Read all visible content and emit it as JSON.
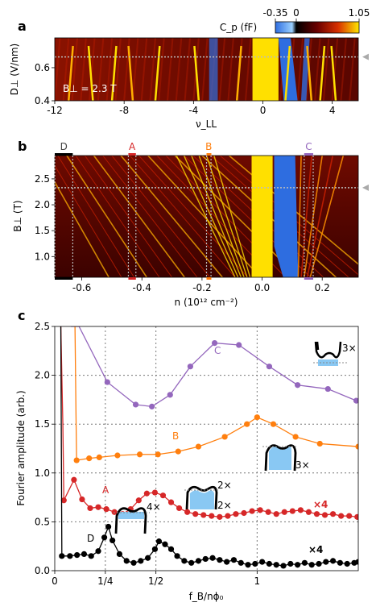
{
  "colors": {
    "purple": "#9467bd",
    "orange": "#ff7f0e",
    "red": "#d62728",
    "black": "#000000",
    "fill_blue": "#89c8f3",
    "map_dark": "#4a0000",
    "map_red": "#c82000",
    "map_yellow": "#ffe000",
    "map_blue": "#2e6de0"
  },
  "chart_data": [
    {
      "panel": "a",
      "type": "heatmap",
      "xlabel": "ν_LL",
      "ylabel": "D⊥ (V/nm)",
      "xlim": [
        -12,
        5.5
      ],
      "ylim": [
        0.4,
        0.78
      ],
      "xticks": [
        "-12",
        "-8",
        "-4",
        "0",
        "4"
      ],
      "xtick_values": [
        -12,
        -8,
        -4,
        0,
        4
      ],
      "yticks": [
        "0.4",
        "0.6"
      ],
      "ytick_values": [
        0.4,
        0.6
      ],
      "annotation": "B⊥ = 2.3 T",
      "dotted_line_y": 0.665,
      "colorbar": {
        "label": "C_p (fF)",
        "ticks": [
          "-0.35",
          "0",
          "1.05"
        ],
        "tick_values": [
          -0.35,
          0,
          1.05
        ],
        "range": [
          -0.35,
          1.05
        ]
      },
      "yellow_streaks_nu": [
        -11.2,
        -9.8,
        -8.7,
        -7.5,
        -6.2,
        -3.7,
        -1.5,
        0.0,
        1.3,
        2.8,
        3.3,
        4.2
      ]
    },
    {
      "panel": "b",
      "type": "heatmap",
      "xlabel": "n (10¹² cm⁻²)",
      "ylabel": "B⊥ (T)",
      "xlim": [
        -0.69,
        0.32
      ],
      "ylim": [
        0.6,
        2.95
      ],
      "xticks": [
        "-0.6",
        "-0.4",
        "-0.2",
        "0.0",
        "0.2"
      ],
      "xtick_values": [
        -0.6,
        -0.4,
        -0.2,
        0.0,
        0.2
      ],
      "yticks": [
        "1.0",
        "1.5",
        "2.0",
        "2.5"
      ],
      "ytick_values": [
        1.0,
        1.5,
        2.0,
        2.5
      ],
      "dotted_line_y": 2.33,
      "markers": [
        {
          "label": "D",
          "n": [
            -0.69,
            -0.63
          ],
          "color": "#000000"
        },
        {
          "label": "A",
          "n": [
            -0.445,
            -0.42
          ],
          "color": "#d62728"
        },
        {
          "label": "B",
          "n": [
            -0.185,
            -0.17
          ],
          "color": "#ff7f0e"
        },
        {
          "label": "C",
          "n": [
            0.14,
            0.17
          ],
          "color": "#9467bd"
        }
      ]
    },
    {
      "panel": "c",
      "type": "line",
      "xlabel": "f_B/nϕ₀",
      "ylabel": "Fourier amplitude (arb.)",
      "xlim": [
        0,
        1.5
      ],
      "ylim": [
        0,
        2.5
      ],
      "xticks": [
        "0",
        "1/4",
        "1/2",
        "1"
      ],
      "xtick_values": [
        0,
        0.25,
        0.5,
        1.0
      ],
      "yticks": [
        "0.0",
        "0.5",
        "1.0",
        "1.5",
        "2.0",
        "2.5"
      ],
      "ytick_values": [
        0,
        0.5,
        1.0,
        1.5,
        2.0,
        2.5
      ],
      "vgrid": [
        0.25,
        0.5,
        1.0
      ],
      "hgrid": [
        0.5,
        1.0,
        1.5,
        2.0
      ],
      "series": [
        {
          "name": "C",
          "color": "#9467bd",
          "spike": [
            [
              0.08,
              2.5
            ],
            [
              0.12,
              2.5
            ]
          ],
          "points": [
            [
              0.12,
              2.5
            ],
            [
              0.26,
              1.93
            ],
            [
              0.4,
              1.7
            ],
            [
              0.48,
              1.68
            ],
            [
              0.57,
              1.8
            ],
            [
              0.67,
              2.09
            ],
            [
              0.79,
              2.33
            ],
            [
              0.91,
              2.31
            ],
            [
              1.06,
              2.09
            ],
            [
              1.2,
              1.9
            ],
            [
              1.35,
              1.86
            ],
            [
              1.49,
              1.74
            ]
          ],
          "markers_from": 1
        },
        {
          "name": "B",
          "color": "#ff7f0e",
          "spike": [
            [
              0.1,
              2.5
            ],
            [
              0.105,
              1.6
            ]
          ],
          "points": [
            [
              0.108,
              1.13
            ],
            [
              0.17,
              1.15
            ],
            [
              0.22,
              1.16
            ],
            [
              0.31,
              1.18
            ],
            [
              0.42,
              1.19
            ],
            [
              0.51,
              1.19
            ],
            [
              0.61,
              1.22
            ],
            [
              0.71,
              1.27
            ],
            [
              0.84,
              1.37
            ],
            [
              0.95,
              1.5
            ],
            [
              1.0,
              1.57
            ],
            [
              1.08,
              1.5
            ],
            [
              1.19,
              1.37
            ],
            [
              1.31,
              1.3
            ],
            [
              1.5,
              1.27
            ]
          ]
        },
        {
          "name": "A",
          "color": "#d62728",
          "spike": [
            [
              0.03,
              2.5
            ],
            [
              0.04,
              1.5
            ]
          ],
          "points": [
            [
              0.045,
              0.72
            ],
            [
              0.095,
              0.93
            ],
            [
              0.135,
              0.73
            ],
            [
              0.175,
              0.64
            ],
            [
              0.215,
              0.65
            ],
            [
              0.255,
              0.63
            ],
            [
              0.295,
              0.6
            ],
            [
              0.335,
              0.58
            ],
            [
              0.375,
              0.63
            ],
            [
              0.415,
              0.72
            ],
            [
              0.455,
              0.79
            ],
            [
              0.495,
              0.8
            ],
            [
              0.535,
              0.77
            ],
            [
              0.575,
              0.7
            ],
            [
              0.615,
              0.64
            ],
            [
              0.655,
              0.6
            ],
            [
              0.695,
              0.58
            ],
            [
              0.735,
              0.57
            ],
            [
              0.775,
              0.56
            ],
            [
              0.815,
              0.55
            ],
            [
              0.855,
              0.56
            ],
            [
              0.895,
              0.58
            ],
            [
              0.935,
              0.59
            ],
            [
              0.975,
              0.61
            ],
            [
              1.015,
              0.62
            ],
            [
              1.055,
              0.6
            ],
            [
              1.095,
              0.58
            ],
            [
              1.135,
              0.6
            ],
            [
              1.175,
              0.61
            ],
            [
              1.215,
              0.62
            ],
            [
              1.255,
              0.6
            ],
            [
              1.295,
              0.58
            ],
            [
              1.335,
              0.57
            ],
            [
              1.375,
              0.58
            ],
            [
              1.415,
              0.56
            ],
            [
              1.455,
              0.56
            ],
            [
              1.495,
              0.55
            ]
          ]
        },
        {
          "name": "D",
          "color": "#000000",
          "spike": [
            [
              0.03,
              2.5
            ],
            [
              0.035,
              0.2
            ]
          ],
          "points": [
            [
              0.035,
              0.15
            ],
            [
              0.075,
              0.15
            ],
            [
              0.11,
              0.16
            ],
            [
              0.145,
              0.17
            ],
            [
              0.18,
              0.15
            ],
            [
              0.215,
              0.2
            ],
            [
              0.245,
              0.34
            ],
            [
              0.265,
              0.45
            ],
            [
              0.285,
              0.31
            ],
            [
              0.32,
              0.17
            ],
            [
              0.355,
              0.1
            ],
            [
              0.39,
              0.08
            ],
            [
              0.425,
              0.1
            ],
            [
              0.46,
              0.13
            ],
            [
              0.495,
              0.22
            ],
            [
              0.515,
              0.3
            ],
            [
              0.545,
              0.27
            ],
            [
              0.575,
              0.22
            ],
            [
              0.605,
              0.15
            ],
            [
              0.64,
              0.1
            ],
            [
              0.675,
              0.08
            ],
            [
              0.71,
              0.1
            ],
            [
              0.745,
              0.12
            ],
            [
              0.78,
              0.13
            ],
            [
              0.815,
              0.11
            ],
            [
              0.85,
              0.09
            ],
            [
              0.885,
              0.11
            ],
            [
              0.92,
              0.08
            ],
            [
              0.955,
              0.06
            ],
            [
              0.99,
              0.07
            ],
            [
              1.025,
              0.09
            ],
            [
              1.06,
              0.07
            ],
            [
              1.095,
              0.06
            ],
            [
              1.13,
              0.05
            ],
            [
              1.165,
              0.07
            ],
            [
              1.2,
              0.06
            ],
            [
              1.235,
              0.08
            ],
            [
              1.27,
              0.06
            ],
            [
              1.305,
              0.07
            ],
            [
              1.34,
              0.09
            ],
            [
              1.375,
              0.1
            ],
            [
              1.41,
              0.08
            ],
            [
              1.445,
              0.07
            ],
            [
              1.48,
              0.08
            ],
            [
              1.5,
              0.09
            ]
          ]
        }
      ],
      "annotations": [
        {
          "text": "C",
          "color": "#9467bd"
        },
        {
          "text": "B",
          "color": "#ff7f0e"
        },
        {
          "text": "A",
          "color": "#d62728"
        },
        {
          "text": "D",
          "color": "#000000"
        },
        {
          "text": "×4",
          "color": "#d62728",
          "bold": true
        },
        {
          "text": "×4",
          "color": "#000000",
          "bold": true
        },
        {
          "text": "3×",
          "color": "#000000"
        },
        {
          "text": "3×",
          "color": "#000000"
        },
        {
          "text": "2×",
          "color": "#000000"
        },
        {
          "text": "2×",
          "color": "#000000"
        },
        {
          "text": "4×",
          "color": "#000000"
        }
      ]
    }
  ],
  "panel_labels": [
    "a",
    "b",
    "c"
  ]
}
